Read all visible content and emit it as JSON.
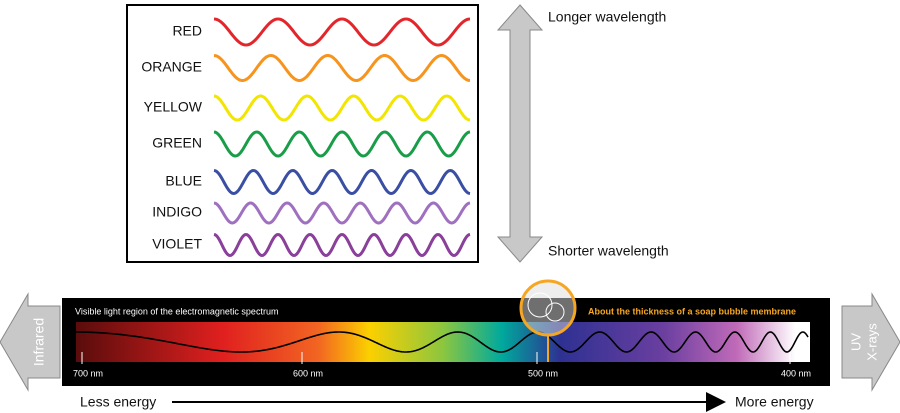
{
  "colors": [
    {
      "label": "RED",
      "color": "#e3262b"
    },
    {
      "label": "ORANGE",
      "color": "#f7941d"
    },
    {
      "label": "YELLOW",
      "color": "#f2e500"
    },
    {
      "label": "GREEN",
      "color": "#1a9d49"
    },
    {
      "label": "BLUE",
      "color": "#3a4fa3"
    },
    {
      "label": "INDIGO",
      "color": "#a070c0"
    },
    {
      "label": "VIOLET",
      "color": "#8a3f9a"
    }
  ],
  "wavelength_arrow": {
    "top": "Longer wavelength",
    "bottom": "Shorter wavelength"
  },
  "spectrum": {
    "title": "Visible light region of the electromagnetic spectrum",
    "callout": "About the thickness of a soap bubble membrane",
    "ticks": [
      "700 nm",
      "600 nm",
      "500 nm",
      "400 nm"
    ]
  },
  "left_arrow": "Infrared",
  "right_arrow": [
    "UV",
    "X-rays"
  ],
  "energy": {
    "left": "Less energy",
    "right": "More energy"
  }
}
